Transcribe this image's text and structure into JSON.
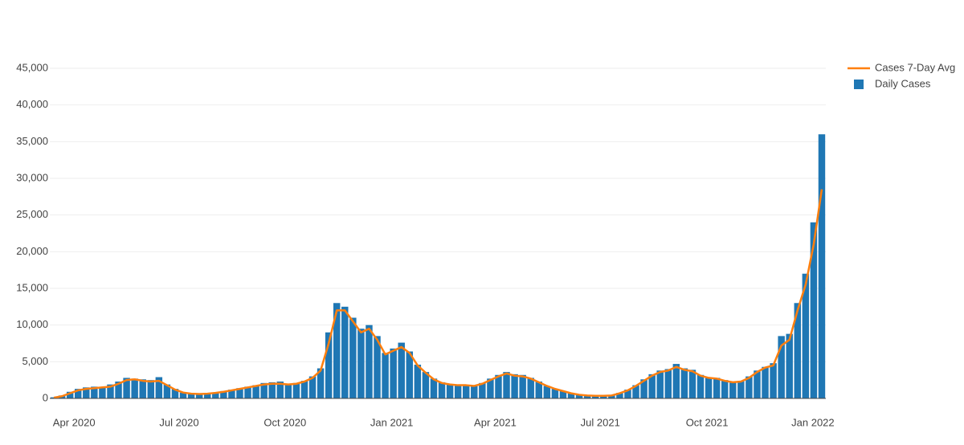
{
  "chart_data": {
    "type": "bar_line",
    "series": [
      {
        "name": "Cases 7-Day Avg",
        "color": "#ff7f0e",
        "kind": "line",
        "values": [
          100,
          300,
          700,
          1100,
          1300,
          1400,
          1500,
          1600,
          2000,
          2500,
          2600,
          2400,
          2300,
          2400,
          1800,
          1200,
          800,
          650,
          600,
          650,
          750,
          900,
          1100,
          1300,
          1500,
          1700,
          1900,
          2000,
          2000,
          1900,
          2000,
          2300,
          2800,
          3800,
          7500,
          12000,
          12000,
          10500,
          9000,
          9500,
          8000,
          6000,
          6500,
          7000,
          6200,
          4500,
          3500,
          2600,
          2100,
          1900,
          1800,
          1800,
          1700,
          2000,
          2500,
          3000,
          3400,
          3100,
          3000,
          2700,
          2200,
          1700,
          1300,
          1000,
          700,
          500,
          400,
          350,
          350,
          400,
          700,
          1100,
          1700,
          2400,
          3100,
          3600,
          3800,
          4300,
          3900,
          3700,
          3100,
          2800,
          2700,
          2400,
          2200,
          2300,
          2800,
          3600,
          4200,
          4500,
          7200,
          8000,
          12000,
          15500,
          21000,
          28500
        ]
      },
      {
        "name": "Daily Cases",
        "color": "#1f77b4",
        "kind": "bar",
        "values": [
          150,
          400,
          900,
          1300,
          1500,
          1600,
          1500,
          1900,
          2300,
          2800,
          2700,
          2600,
          2500,
          2900,
          1900,
          1300,
          800,
          700,
          650,
          700,
          800,
          1000,
          1200,
          1400,
          1600,
          1800,
          2100,
          2200,
          2300,
          2000,
          2100,
          2400,
          3000,
          4100,
          9000,
          13000,
          12500,
          11000,
          9500,
          10000,
          8500,
          6200,
          6800,
          7600,
          6400,
          4600,
          3600,
          2700,
          2200,
          1900,
          1900,
          1800,
          1800,
          2100,
          2700,
          3200,
          3600,
          3300,
          3200,
          2800,
          2300,
          1700,
          1300,
          1000,
          700,
          500,
          400,
          350,
          350,
          450,
          750,
          1200,
          1800,
          2600,
          3300,
          3800,
          4000,
          4700,
          4100,
          3900,
          3200,
          2900,
          2800,
          2500,
          2300,
          2400,
          3000,
          3800,
          4300,
          4800,
          8500,
          8800,
          13000,
          17000,
          24000,
          36000
        ]
      }
    ],
    "xlim": [
      0,
      96
    ],
    "xticks": [
      {
        "value": 3,
        "label": "Apr 2020"
      },
      {
        "value": 16,
        "label": "Jul 2020"
      },
      {
        "value": 29.1,
        "label": "Oct 2020"
      },
      {
        "value": 42.3,
        "label": "Jan 2021"
      },
      {
        "value": 55.1,
        "label": "Apr 2021"
      },
      {
        "value": 68.1,
        "label": "Jul 2021"
      },
      {
        "value": 81.3,
        "label": "Oct 2021"
      },
      {
        "value": 94.4,
        "label": "Jan 2022"
      }
    ],
    "ylim": [
      0,
      45000
    ],
    "yticks": [
      0,
      {
        "value": 5000,
        "label": "5,000"
      },
      {
        "value": 10000,
        "label": "10,000"
      },
      {
        "value": 15000,
        "label": "15,000"
      },
      {
        "value": 20000,
        "label": "20,000"
      },
      {
        "value": 25000,
        "label": "25,000"
      },
      {
        "value": 30000,
        "label": "30,000"
      },
      {
        "value": 35000,
        "label": "35,000"
      },
      {
        "value": 40000,
        "label": "40,000"
      },
      {
        "value": 45000,
        "label": "45,000"
      }
    ],
    "grid": true
  }
}
